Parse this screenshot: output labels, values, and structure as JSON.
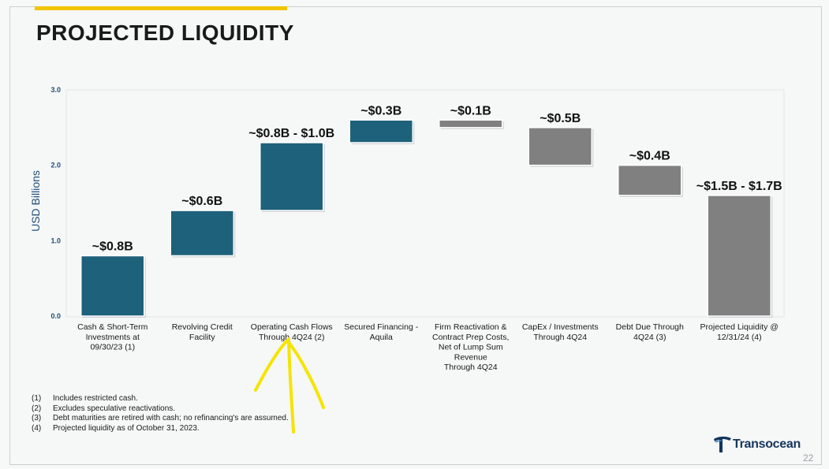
{
  "slide": {
    "title": "PROJECTED LIQUIDITY",
    "page_number": "22",
    "logo_text": "Transocean",
    "colors": {
      "accent": "#f2c500",
      "teal": "#1e617a",
      "gray": "#808080",
      "title": "#1a1a1a"
    }
  },
  "chart_data": {
    "type": "bar",
    "subtype": "waterfall",
    "ylabel": "USD Billions",
    "ylim": [
      0,
      3.0
    ],
    "yticks": [
      "0.0",
      "1.0",
      "2.0",
      "3.0"
    ],
    "grid": false,
    "categories": [
      "Cash & Short-Term Investments at 09/30/23 (1)",
      "Revolving Credit Facility",
      "Operating Cash Flows Through 4Q24 (2)",
      "Secured Financing - Aquila",
      "Firm Reactivation & Contract Prep Costs, Net of Lump Sum Revenue Through 4Q24",
      "CapEx / Investments Through 4Q24",
      "Debt Due Through 4Q24 (3)",
      "Projected Liquidity @ 12/31/24 (4)"
    ],
    "category_lines": [
      [
        "Cash & Short-Term",
        "Investments at",
        "09/30/23 (1)"
      ],
      [
        "Revolving Credit",
        "Facility"
      ],
      [
        "Operating Cash Flows",
        "Through 4Q24 (2)"
      ],
      [
        "Secured Financing -",
        "Aquila"
      ],
      [
        "Firm Reactivation &",
        "Contract Prep Costs,",
        "Net of Lump Sum",
        "Revenue",
        "Through 4Q24"
      ],
      [
        "CapEx / Investments",
        "Through 4Q24"
      ],
      [
        "Debt Due Through",
        "4Q24 (3)"
      ],
      [
        "Projected Liquidity @",
        "12/31/24 (4)"
      ]
    ],
    "bars": [
      {
        "start": 0.0,
        "end": 0.8,
        "label": "~$0.8B",
        "kind": "increase"
      },
      {
        "start": 0.8,
        "end": 1.4,
        "label": "~$0.6B",
        "kind": "increase"
      },
      {
        "start": 1.4,
        "end": 2.3,
        "label": "~$0.8B - $1.0B",
        "kind": "increase"
      },
      {
        "start": 2.3,
        "end": 2.6,
        "label": "~$0.3B",
        "kind": "increase"
      },
      {
        "start": 2.6,
        "end": 2.5,
        "label": "~$0.1B",
        "kind": "decrease"
      },
      {
        "start": 2.5,
        "end": 2.0,
        "label": "~$0.5B",
        "kind": "decrease"
      },
      {
        "start": 2.0,
        "end": 1.6,
        "label": "~$0.4B",
        "kind": "decrease"
      },
      {
        "start": 0.0,
        "end": 1.6,
        "label": "~$1.5B - $1.7B",
        "kind": "total"
      }
    ]
  },
  "footnotes": [
    {
      "num": "(1)",
      "text": "Includes restricted cash."
    },
    {
      "num": "(2)",
      "text": "Excludes speculative reactivations."
    },
    {
      "num": "(3)",
      "text": "Debt maturities are retired with cash; no refinancing's are assumed."
    },
    {
      "num": "(4)",
      "text": "Projected liquidity as of October 31, 2023."
    }
  ]
}
